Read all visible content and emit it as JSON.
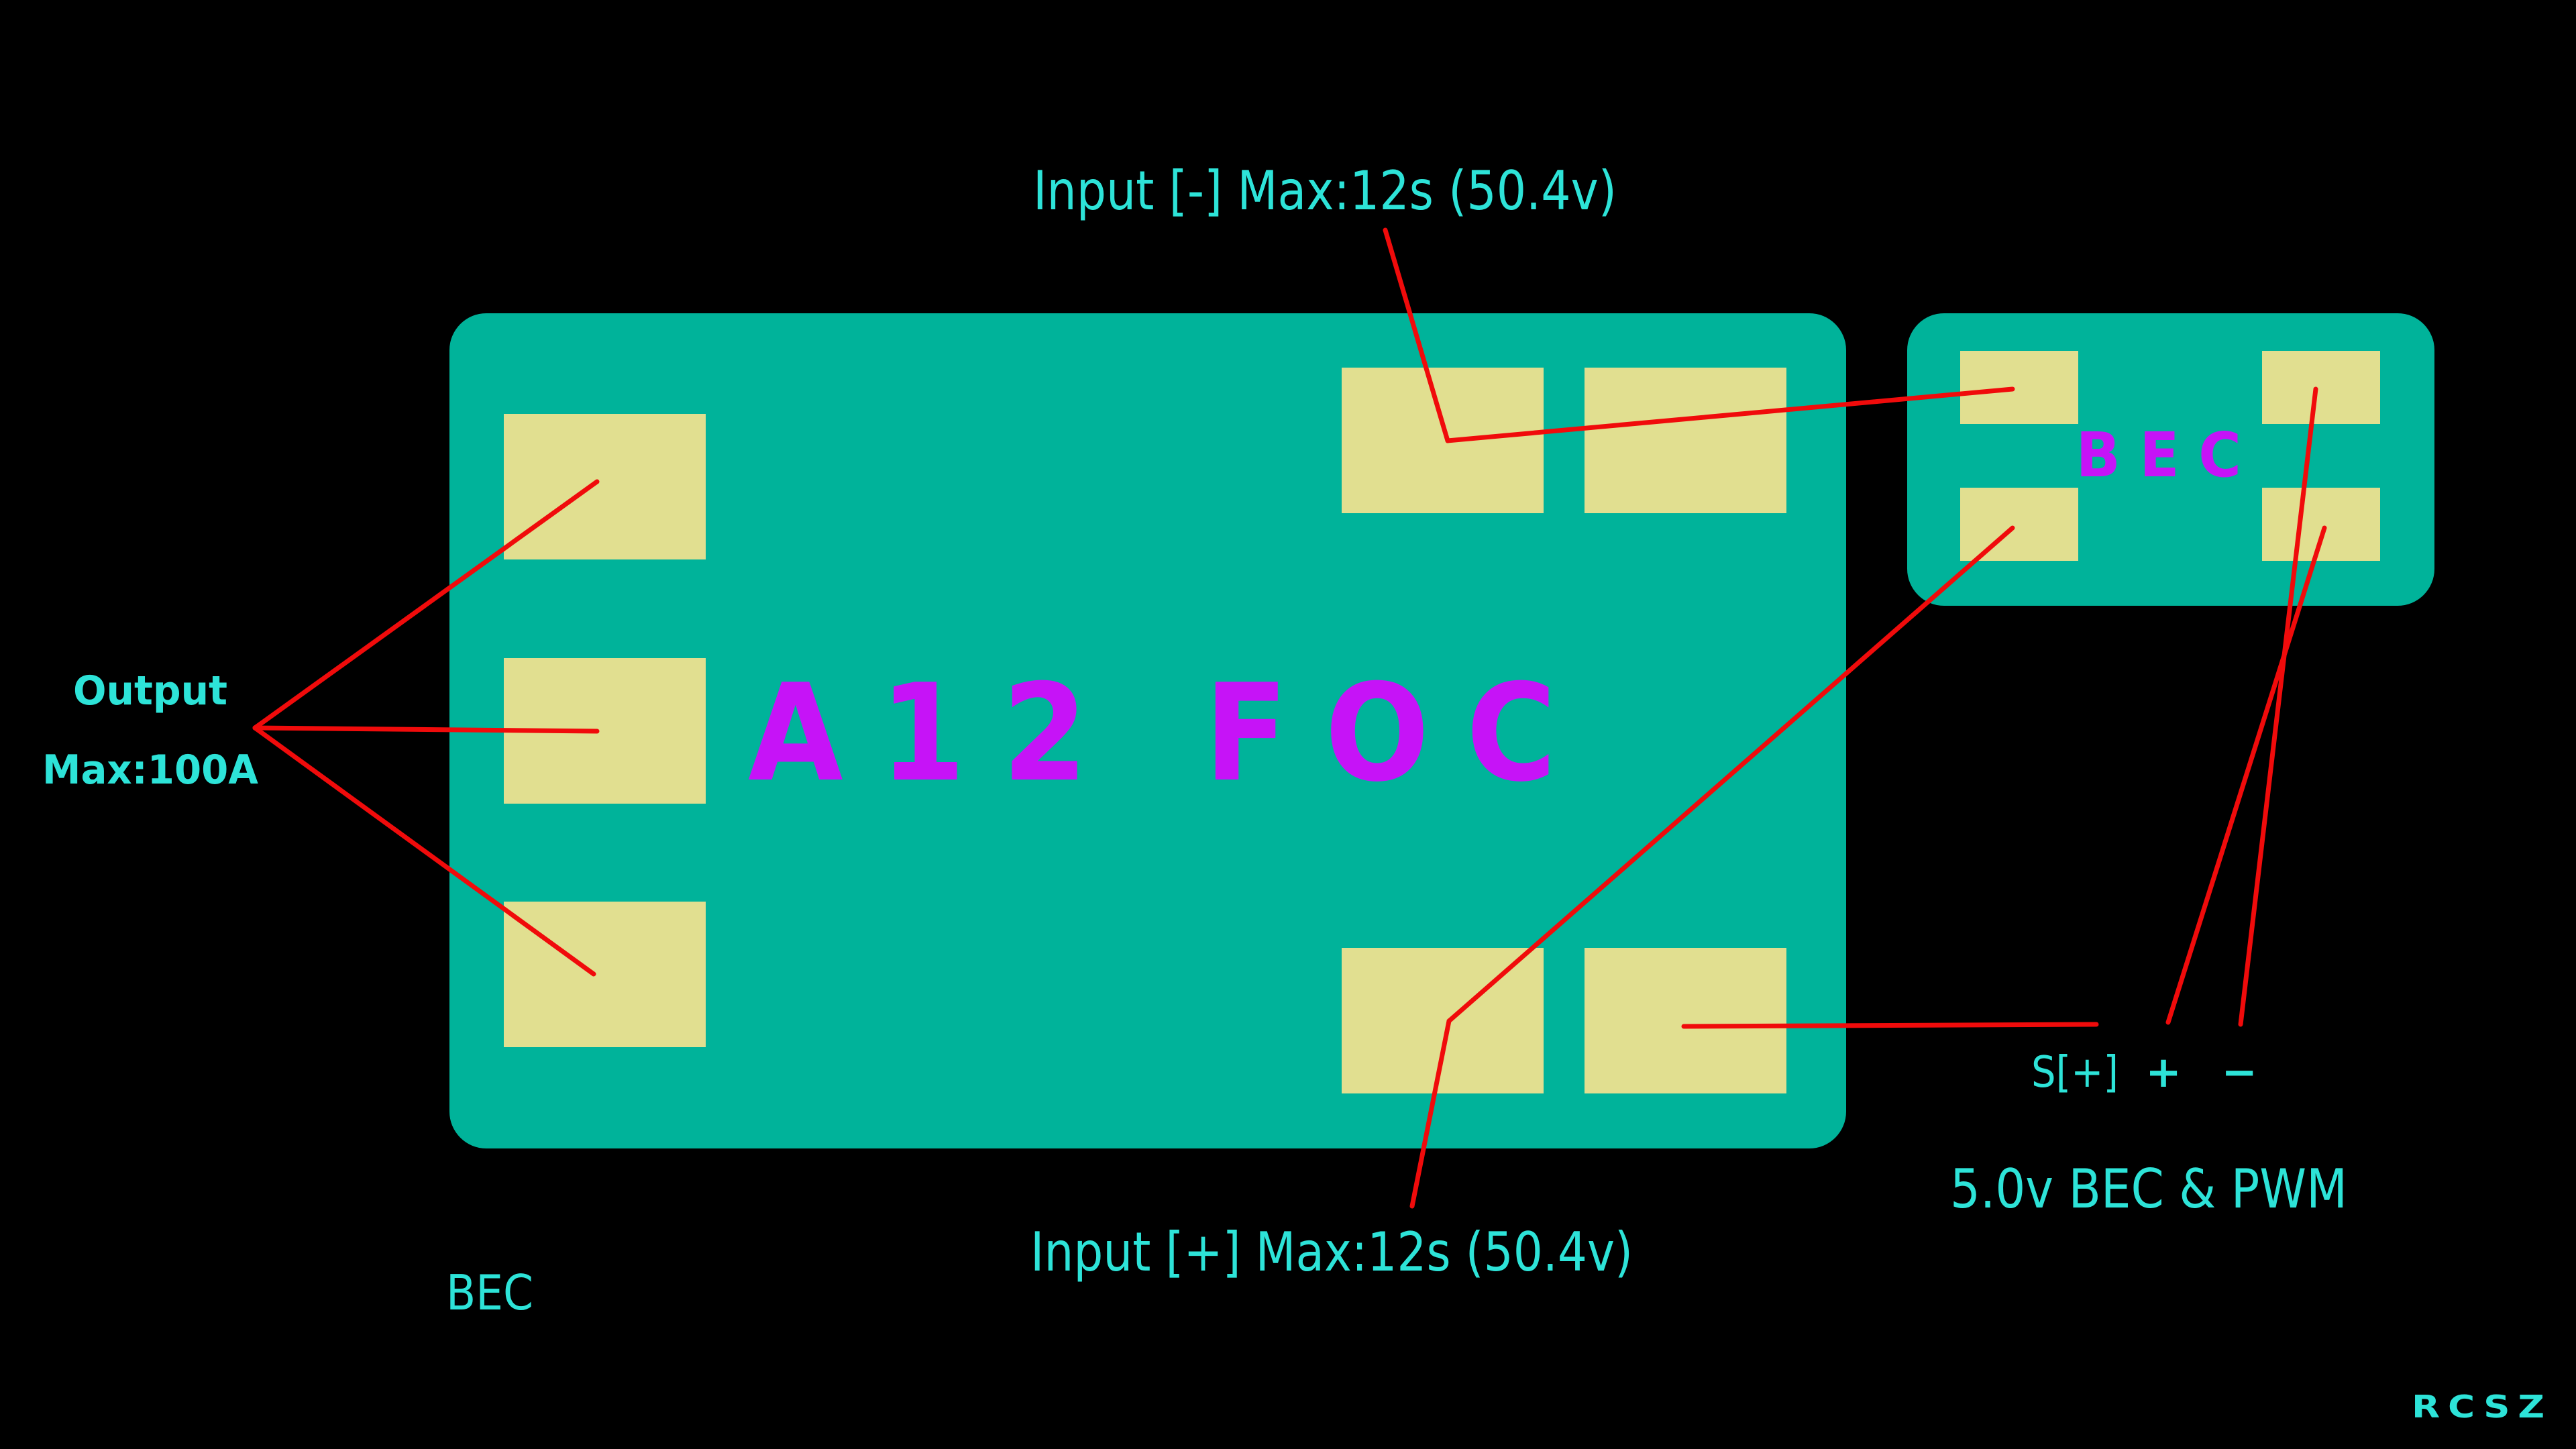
{
  "colors": {
    "background": "#000000",
    "board": "#00b39a",
    "pad": "#e1df90",
    "board_title": "#c613f7",
    "label": "#2de3d8",
    "wire": "#f00b0b"
  },
  "board": {
    "title": "A12 FOC",
    "bec_module_title": "BEC"
  },
  "labels": {
    "input_negative": "Input [-] Max:12s (50.4v)",
    "input_positive": "Input [+] Max:12s (50.4v)",
    "output_line1": "Output",
    "output_line2": "Max:100A",
    "signal_pin": "S[+]",
    "plus_pin": "+",
    "minus_pin": "−",
    "bec_pwm": "5.0v BEC & PWM",
    "bec_caption": "BEC",
    "watermark": "RCSZ"
  }
}
